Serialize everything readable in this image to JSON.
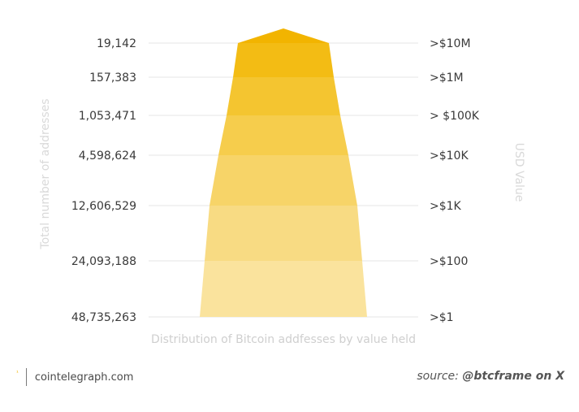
{
  "chart_data": {
    "type": "area",
    "title": "",
    "xlabel": "Distribution of Bitcoin addfesses by value held",
    "ylabel_left": "Total number of addresses",
    "ylabel_right": "USD Value",
    "categories_usd": [
      ">$10M",
      ">$1M",
      "> $100K",
      ">$10K",
      ">$1K",
      ">$100",
      ">$1"
    ],
    "address_counts": [
      "19,142",
      "157,383",
      "1,053,471",
      "4,598,624",
      "12,606,529",
      "24,093,188",
      "48,735,263"
    ],
    "values": [
      19142,
      157383,
      1053471,
      4598624,
      12606529,
      24093188,
      48735263
    ],
    "grid": true,
    "legend": "none",
    "colors": [
      "#f2b400",
      "#f3bc14",
      "#f4c530",
      "#f6cd4c",
      "#f7d468",
      "#f8db83",
      "#fae39d"
    ]
  },
  "footer": {
    "mark": "¹",
    "site": "cointelegraph.com",
    "source_prefix": "source:",
    "source_name": "@btcframe on X"
  }
}
